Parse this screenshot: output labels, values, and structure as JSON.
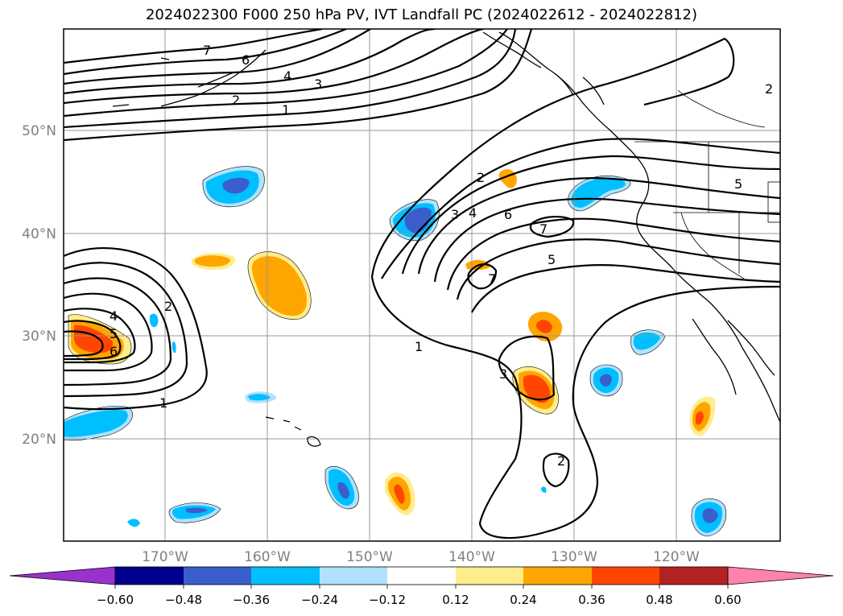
{
  "title": "2024022300 F000 250 hPa PV, IVT Landfall PC (2024022612 - 2024022812)",
  "map": {
    "lon_labels": [
      "170°W",
      "160°W",
      "150°W",
      "140°W",
      "130°W",
      "120°W"
    ],
    "lat_labels": [
      "50°N",
      "40°N",
      "30°N",
      "20°N"
    ]
  },
  "contour_labels": [
    "7",
    "6",
    "4",
    "3",
    "2",
    "1",
    "2",
    "3",
    "4",
    "6",
    "7",
    "5",
    "7",
    "1",
    "3",
    "2",
    "4",
    "5",
    "6",
    "2",
    "1",
    "2",
    "5"
  ],
  "colorbar": {
    "colors": [
      "#9932cc",
      "#00008b",
      "#3a5fcd",
      "#00bfff",
      "#b0e2ff",
      "#ffffff",
      "#ffec8b",
      "#ffa500",
      "#ff4500",
      "#b22222",
      "#ff82ab"
    ],
    "tick_labels": [
      "−0.60",
      "−0.48",
      "−0.36",
      "−0.24",
      "−0.12",
      "0.12",
      "0.24",
      "0.36",
      "0.48",
      "0.60"
    ]
  }
}
